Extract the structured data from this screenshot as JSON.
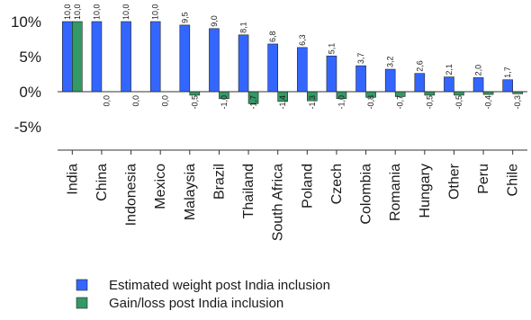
{
  "chart_data": {
    "type": "bar",
    "categories": [
      "India",
      "China",
      "Indonesia",
      "Mexico",
      "Malaysia",
      "Brazil",
      "Thailand",
      "South Africa",
      "Poland",
      "Czech",
      "Colombia",
      "Romania",
      "Hungary",
      "Other",
      "Peru",
      "Chile"
    ],
    "series": [
      {
        "name": "Estimated weight post India inclusion",
        "color": "#3366ff",
        "values": [
          10.0,
          10.0,
          10.0,
          10.0,
          9.5,
          9.0,
          8.1,
          6.8,
          6.3,
          5.1,
          3.7,
          3.2,
          2.6,
          2.1,
          2.0,
          1.7
        ],
        "labels": [
          "10,0",
          "10,0",
          "10,0",
          "10,0",
          "9,5",
          "9,0",
          "8,1",
          "6,8",
          "6,3",
          "5,1",
          "3,7",
          "3,2",
          "2,6",
          "2,1",
          "2,0",
          "1,7"
        ]
      },
      {
        "name": "Gain/loss post India inclusion",
        "color": "#339966",
        "values": [
          10.0,
          0.0,
          0.0,
          0.0,
          -0.5,
          -1.0,
          -1.7,
          -1.4,
          -1.3,
          -1.0,
          -0.8,
          -0.7,
          -0.5,
          -0.5,
          -0.4,
          -0.3
        ],
        "labels": [
          "10,0",
          "0,0",
          "0,0",
          "0,0",
          "-0,5",
          "-1,0",
          "-1,7",
          "-1,4",
          "-1,3",
          "-1,0",
          "-0,8",
          "-0,7",
          "-0,5",
          "-0,5",
          "-0,4",
          "-0,3"
        ]
      }
    ],
    "yticks": [
      {
        "value": 10,
        "label": "10%"
      },
      {
        "value": 5,
        "label": "5%"
      },
      {
        "value": 0,
        "label": "0%"
      },
      {
        "value": -5,
        "label": "-5%"
      }
    ],
    "ylim": [
      -8.5,
      11.5
    ],
    "grid": false,
    "legend_position": "bottom-left"
  }
}
